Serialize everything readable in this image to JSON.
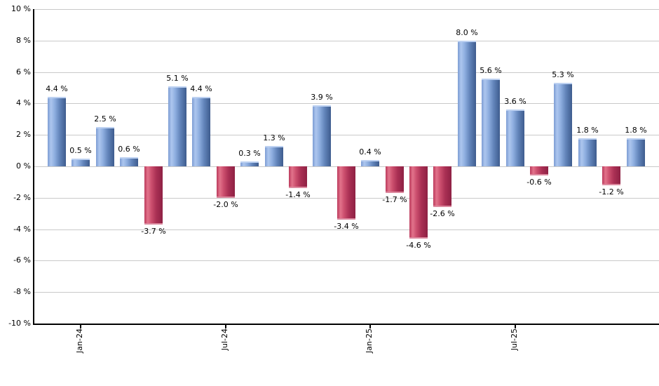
{
  "chart_data": {
    "type": "bar",
    "title": "",
    "xlabel": "",
    "ylabel": "",
    "unit": "%",
    "ylim": [
      -10,
      10
    ],
    "ytick_step": 2,
    "grid": true,
    "legend": false,
    "bars": [
      {
        "value": 4.4,
        "label": "4.4 %"
      },
      {
        "value": 0.5,
        "label": "0.5 %"
      },
      {
        "value": 2.5,
        "label": "2.5 %"
      },
      {
        "value": 0.6,
        "label": "0.6 %"
      },
      {
        "value": -3.7,
        "label": "-3.7 %"
      },
      {
        "value": 5.1,
        "label": "5.1 %"
      },
      {
        "value": 4.4,
        "label": "4.4 %"
      },
      {
        "value": -2.0,
        "label": "-2.0 %"
      },
      {
        "value": 0.3,
        "label": "0.3 %"
      },
      {
        "value": 1.3,
        "label": "1.3 %"
      },
      {
        "value": -1.4,
        "label": "-1.4 %"
      },
      {
        "value": 3.9,
        "label": "3.9 %"
      },
      {
        "value": -3.4,
        "label": "-3.4 %"
      },
      {
        "value": 0.4,
        "label": "0.4 %"
      },
      {
        "value": -1.7,
        "label": "-1.7 %"
      },
      {
        "value": -4.6,
        "label": "-4.6 %"
      },
      {
        "value": -2.6,
        "label": "-2.6 %"
      },
      {
        "value": 8.0,
        "label": "8.0 %"
      },
      {
        "value": 5.6,
        "label": "5.6 %"
      },
      {
        "value": 3.6,
        "label": "3.6 %"
      },
      {
        "value": -0.6,
        "label": "-0.6 %"
      },
      {
        "value": 5.3,
        "label": "5.3 %"
      },
      {
        "value": 1.8,
        "label": "1.8 %"
      },
      {
        "value": -1.2,
        "label": "-1.2 %"
      },
      {
        "value": 1.8,
        "label": "1.8 %"
      }
    ],
    "y_axis": {
      "ticks": [
        {
          "value": 10,
          "label": "10 %"
        },
        {
          "value": 8,
          "label": "8 %"
        },
        {
          "value": 6,
          "label": "6 %"
        },
        {
          "value": 4,
          "label": "4 %"
        },
        {
          "value": 2,
          "label": "2 %"
        },
        {
          "value": 0,
          "label": "0 %"
        },
        {
          "value": -2,
          "label": "-2 %"
        },
        {
          "value": -4,
          "label": "-4 %"
        },
        {
          "value": -6,
          "label": "-6 %"
        },
        {
          "value": -8,
          "label": "-8 %"
        },
        {
          "value": -10,
          "label": "-10 %"
        }
      ]
    },
    "x_axis": {
      "ticks": [
        {
          "bar_index": 1,
          "label": "Jan-24"
        },
        {
          "bar_index": 7,
          "label": "Jul-24"
        },
        {
          "bar_index": 13,
          "label": "Jan-25"
        },
        {
          "bar_index": 19,
          "label": "Jul-25"
        }
      ]
    },
    "colors": {
      "positive_bar": "#6385bb",
      "positive_gradient": [
        "#7d9dd4",
        "#adc6ee",
        "#8fafe0",
        "#6385bb",
        "#3e5c8e"
      ],
      "negative_bar": "#cc4f6e",
      "negative_gradient": [
        "#bb3a5c",
        "#e2738b",
        "#cc4f6e",
        "#aa3054",
        "#8e2144"
      ],
      "gridline": "#c9c9c9",
      "axis": "#000000",
      "label_text": "#000000"
    },
    "legend_position": "none"
  }
}
